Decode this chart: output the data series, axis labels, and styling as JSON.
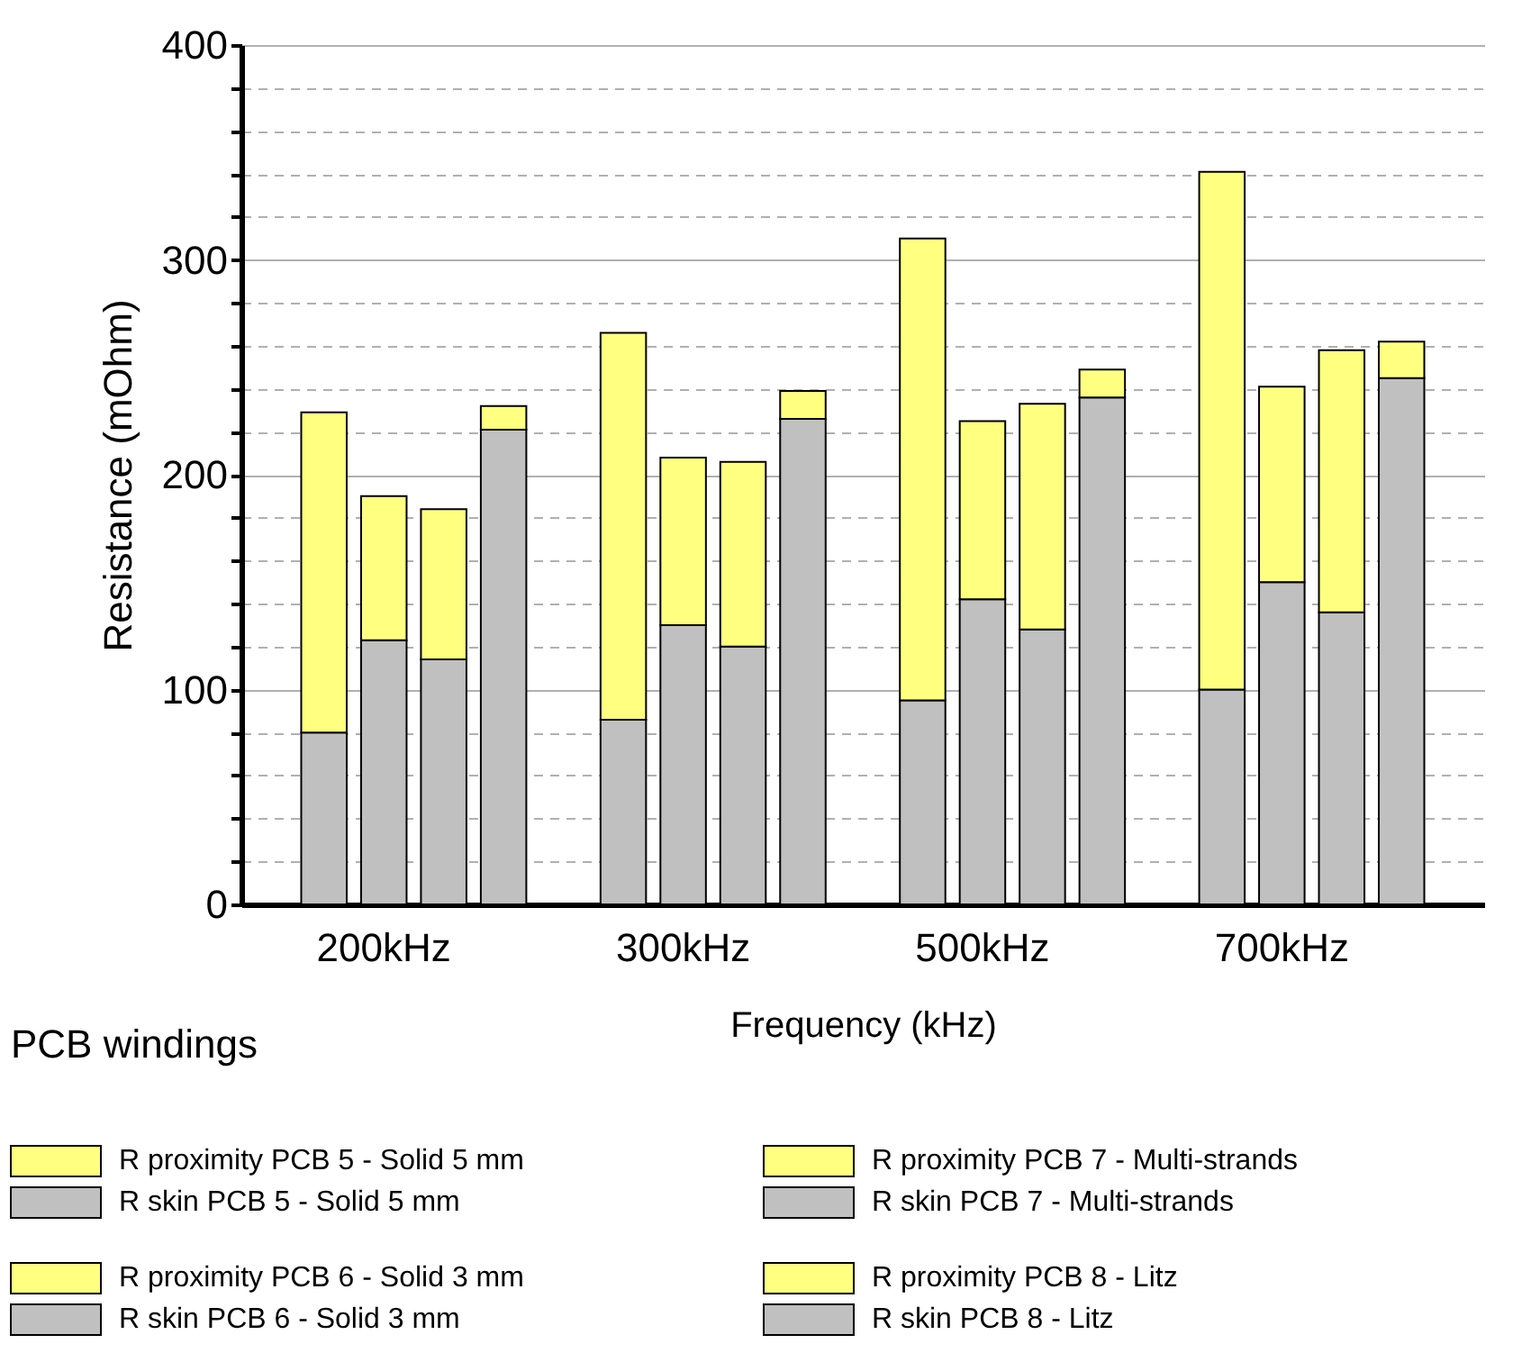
{
  "chart_data": {
    "type": "bar",
    "stacked": true,
    "xlabel": "Frequency (kHz)",
    "ylabel": "Resistance (mOhm)",
    "legend_title": "PCB windings",
    "legend": "bottom",
    "grid": "y",
    "categories": [
      null,
      "200kHz",
      null,
      null,
      null,
      null,
      "300kHz",
      null,
      null,
      null,
      null,
      "500kHz",
      null,
      null,
      null,
      null,
      "700kHz",
      null,
      null
    ],
    "ylim": [
      0,
      400
    ],
    "yticks": [
      0,
      {
        "value": 20,
        "label": null
      },
      {
        "value": 40,
        "label": null
      },
      {
        "value": 60,
        "label": null
      },
      {
        "value": 80,
        "label": null
      },
      100,
      {
        "value": 120,
        "label": null
      },
      {
        "value": 140,
        "label": null
      },
      {
        "value": 160,
        "label": null
      },
      {
        "value": 180,
        "label": null
      },
      200,
      {
        "value": 220,
        "label": null
      },
      {
        "value": 240,
        "label": null
      },
      {
        "value": 260,
        "label": null
      },
      {
        "value": 280,
        "label": null
      },
      300,
      {
        "value": 320,
        "label": null
      },
      {
        "value": 340,
        "label": null
      },
      {
        "value": 360,
        "label": null
      },
      {
        "value": 380,
        "label": null
      },
      400
    ],
    "series": [
      {
        "name": "R skin PCB 5 - Solid 5 mm",
        "color": "#c0c0c0",
        "values": [
          80,
          null,
          null,
          null,
          null,
          86,
          null,
          null,
          null,
          null,
          95,
          null,
          null,
          null,
          null,
          100,
          null,
          null,
          null
        ]
      },
      {
        "name": "R proximity PCB 5 - Solid 5 mm",
        "color": "#ffff80",
        "values": [
          149,
          null,
          null,
          null,
          null,
          180,
          null,
          null,
          null,
          null,
          215,
          null,
          null,
          null,
          null,
          241,
          null,
          null,
          null
        ]
      },
      {
        "name": "R skin PCB 6 - Solid 3 mm",
        "color": "#c0c0c0",
        "values": [
          null,
          123,
          null,
          null,
          null,
          null,
          130,
          null,
          null,
          null,
          null,
          142,
          null,
          null,
          null,
          null,
          150,
          null,
          null
        ]
      },
      {
        "name": "R proximity PCB 6 - Solid 3 mm",
        "color": "#ffff80",
        "values": [
          null,
          67,
          null,
          null,
          null,
          null,
          78,
          null,
          null,
          null,
          null,
          83,
          null,
          null,
          null,
          null,
          91,
          null,
          null
        ]
      },
      {
        "name": "R skin PCB 7 - Multi-strands",
        "color": "#c0c0c0",
        "values": [
          null,
          null,
          114,
          null,
          null,
          null,
          null,
          120,
          null,
          null,
          null,
          null,
          128,
          null,
          null,
          null,
          null,
          136,
          null
        ]
      },
      {
        "name": "R proximity PCB 7 - Multi-strands",
        "color": "#ffff80",
        "values": [
          null,
          null,
          70,
          null,
          null,
          null,
          null,
          86,
          null,
          null,
          null,
          null,
          105,
          null,
          null,
          null,
          null,
          122,
          null
        ]
      },
      {
        "name": "R skin PCB 8 - Litz",
        "color": "#c0c0c0",
        "values": [
          null,
          null,
          null,
          221,
          null,
          null,
          null,
          null,
          226,
          null,
          null,
          null,
          null,
          236,
          null,
          null,
          null,
          null,
          245
        ]
      },
      {
        "name": "R proximity PCB 8 - Litz",
        "color": "#ffff80",
        "values": [
          null,
          null,
          null,
          11,
          null,
          null,
          null,
          null,
          13,
          null,
          null,
          null,
          null,
          13,
          null,
          null,
          null,
          null,
          17
        ]
      }
    ]
  }
}
